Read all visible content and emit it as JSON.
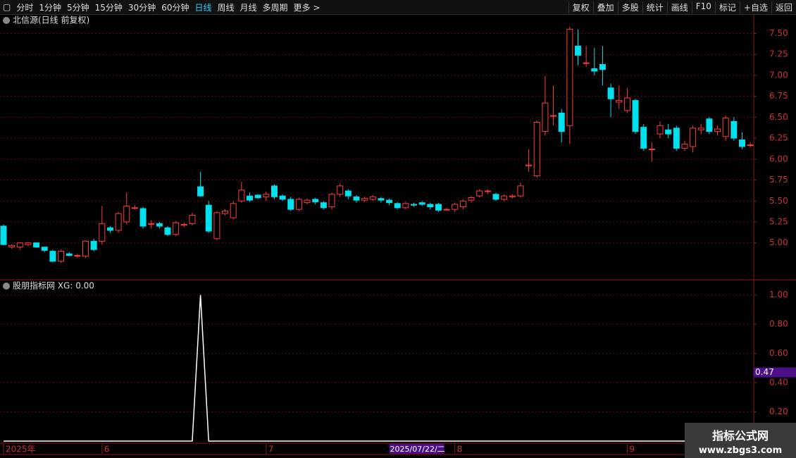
{
  "toolbar": {
    "periods": [
      "分时",
      "1分钟",
      "5分钟",
      "15分钟",
      "30分钟",
      "60分钟",
      "日线",
      "周线",
      "月线",
      "多周期",
      "更多 >"
    ],
    "selected": 6,
    "tools": [
      "复权",
      "叠加",
      "多股",
      "统计",
      "画线",
      "F10",
      "标记",
      "+自选",
      "返回"
    ]
  },
  "chart_data": [
    {
      "type": "candlestick",
      "title": "北信源(日线 前复权)",
      "up_color": "#ff3c3c",
      "down_color": "#00e0ee",
      "categories": [
        "2025年",
        null,
        null,
        null,
        null,
        null,
        null,
        null,
        null,
        null,
        null,
        null,
        "6",
        null,
        null,
        null,
        null,
        null,
        null,
        null,
        null,
        null,
        null,
        null,
        null,
        null,
        null,
        null,
        null,
        null,
        null,
        null,
        "7",
        null,
        null,
        null,
        null,
        null,
        null,
        null,
        null,
        null,
        null,
        null,
        null,
        null,
        null,
        null,
        null,
        null,
        null,
        null,
        null,
        null,
        null,
        "8",
        null,
        null,
        null,
        null,
        null,
        null,
        null,
        null,
        null,
        null,
        null,
        null,
        null,
        null,
        null,
        null,
        null,
        null,
        null,
        null,
        "9",
        null,
        null,
        null,
        null,
        null,
        null,
        null,
        null,
        null,
        null,
        null,
        null,
        null,
        null,
        null
      ],
      "open": [
        5.2,
        4.95,
        4.95,
        4.98,
        5.0,
        4.95,
        4.9,
        4.78,
        4.87,
        4.85,
        4.84,
        5.02,
        5.02,
        5.18,
        5.15,
        5.25,
        5.42,
        5.41,
        5.23,
        5.23,
        5.18,
        5.1,
        5.21,
        5.23,
        5.67,
        5.45,
        5.05,
        5.35,
        5.3,
        5.5,
        5.56,
        5.57,
        5.55,
        5.68,
        5.56,
        5.52,
        5.4,
        5.48,
        5.52,
        5.48,
        5.43,
        5.58,
        5.62,
        5.55,
        5.51,
        5.52,
        5.53,
        5.51,
        5.47,
        5.42,
        5.46,
        5.48,
        5.46,
        5.46,
        5.4,
        5.4,
        5.43,
        5.51,
        5.56,
        5.62,
        5.58,
        5.52,
        5.55,
        5.56,
        5.92,
        5.8,
        6.33,
        6.52,
        6.55,
        6.4,
        7.35,
        7.15,
        7.08,
        7.13,
        6.85,
        6.68,
        6.58,
        6.7,
        6.38,
        6.12,
        6.3,
        6.35,
        6.37,
        6.13,
        6.15,
        6.35,
        6.48,
        6.33,
        6.27,
        6.45,
        6.23,
        6.17
      ],
      "close": [
        4.98,
        4.97,
        5.0,
        5.0,
        4.95,
        4.91,
        4.78,
        4.9,
        4.85,
        4.85,
        5.02,
        4.92,
        5.23,
        5.15,
        5.35,
        5.44,
        5.42,
        5.2,
        5.23,
        5.2,
        5.1,
        5.24,
        5.22,
        5.33,
        5.56,
        5.14,
        5.36,
        5.38,
        5.47,
        5.63,
        5.51,
        5.54,
        5.58,
        5.55,
        5.52,
        5.4,
        5.52,
        5.51,
        5.49,
        5.42,
        5.58,
        5.68,
        5.56,
        5.51,
        5.53,
        5.55,
        5.51,
        5.48,
        5.42,
        5.47,
        5.45,
        5.46,
        5.43,
        5.39,
        5.4,
        5.46,
        5.5,
        5.54,
        5.62,
        5.62,
        5.52,
        5.56,
        5.56,
        5.68,
        5.93,
        6.44,
        6.67,
        6.52,
        6.33,
        7.55,
        7.24,
        7.15,
        7.05,
        7.07,
        6.72,
        6.7,
        6.73,
        6.33,
        6.13,
        6.12,
        6.4,
        6.3,
        6.13,
        6.18,
        6.37,
        6.37,
        6.33,
        6.36,
        6.49,
        6.25,
        6.15,
        6.17
      ],
      "high": [
        5.22,
        4.98,
        5.01,
        5.01,
        5.01,
        4.95,
        4.92,
        4.92,
        4.89,
        4.87,
        5.03,
        5.05,
        5.44,
        5.2,
        5.37,
        5.6,
        5.45,
        5.43,
        5.27,
        5.25,
        5.2,
        5.26,
        5.24,
        5.36,
        5.85,
        5.5,
        5.38,
        5.4,
        5.5,
        5.73,
        5.6,
        5.58,
        5.61,
        5.7,
        5.58,
        5.55,
        5.54,
        5.53,
        5.54,
        5.5,
        5.6,
        5.71,
        5.64,
        5.57,
        5.55,
        5.57,
        5.55,
        5.53,
        5.49,
        5.49,
        5.48,
        5.5,
        5.48,
        5.48,
        5.42,
        5.48,
        5.52,
        5.56,
        5.64,
        5.64,
        5.6,
        5.58,
        5.58,
        5.72,
        6.12,
        6.46,
        6.99,
        6.88,
        6.6,
        7.58,
        7.55,
        7.35,
        7.33,
        7.35,
        6.9,
        6.88,
        6.85,
        6.72,
        6.42,
        6.2,
        6.45,
        6.42,
        6.4,
        6.22,
        6.4,
        6.42,
        6.5,
        6.4,
        6.52,
        6.5,
        6.32,
        6.2
      ],
      "low": [
        4.97,
        4.93,
        4.92,
        4.96,
        4.94,
        4.89,
        4.77,
        4.76,
        4.84,
        4.82,
        4.82,
        4.9,
        4.98,
        5.12,
        5.12,
        5.22,
        5.4,
        5.17,
        5.17,
        5.17,
        5.08,
        5.08,
        5.19,
        5.21,
        5.55,
        5.12,
        5.03,
        5.33,
        5.28,
        5.48,
        5.49,
        5.52,
        5.5,
        5.52,
        5.5,
        5.38,
        5.38,
        5.46,
        5.46,
        5.4,
        5.4,
        5.55,
        5.52,
        5.48,
        5.49,
        5.5,
        5.48,
        5.45,
        5.4,
        5.4,
        5.43,
        5.44,
        5.4,
        5.37,
        5.38,
        5.37,
        5.4,
        5.48,
        5.54,
        5.58,
        5.5,
        5.5,
        5.53,
        5.54,
        5.85,
        5.78,
        6.28,
        6.4,
        6.2,
        6.18,
        7.12,
        7.1,
        7.0,
        6.88,
        6.5,
        6.6,
        6.55,
        6.3,
        6.1,
        5.97,
        6.25,
        6.25,
        6.1,
        6.1,
        6.08,
        6.3,
        6.3,
        6.28,
        6.22,
        6.22,
        6.12,
        6.14
      ],
      "ylim": [
        4.56,
        7.58
      ],
      "yticks": [
        {
          "value": 5,
          "label": "5.00"
        },
        {
          "value": 5.25,
          "label": "5.25"
        },
        {
          "value": 5.5,
          "label": "5.50"
        },
        {
          "value": 5.75,
          "label": "5.75"
        },
        {
          "value": 6,
          "label": "6.00"
        },
        {
          "value": 6.25,
          "label": "6.25"
        },
        {
          "value": 6.5,
          "label": "6.50"
        },
        {
          "value": 6.75,
          "label": "6.75"
        },
        {
          "value": 7,
          "label": "7.00"
        },
        {
          "value": 7.25,
          "label": "7.25"
        },
        {
          "value": 7.5,
          "label": "7.50"
        }
      ],
      "grid": true
    },
    {
      "type": "line",
      "title": "股朋指标网 XG: 0.00",
      "color": "#ffffff",
      "values": [
        0,
        0,
        0,
        0,
        0,
        0,
        0,
        0,
        0,
        0,
        0,
        0,
        0,
        0,
        0,
        0,
        0,
        0,
        0,
        0,
        0,
        0,
        0,
        0,
        1,
        0,
        0,
        0,
        0,
        0,
        0,
        0,
        0,
        0,
        0,
        0,
        0,
        0,
        0,
        0,
        0,
        0,
        0,
        0,
        0,
        0,
        0,
        0,
        0,
        0,
        0,
        0,
        0,
        0,
        0,
        0,
        0,
        0,
        0,
        0,
        0,
        0,
        0,
        0,
        0,
        0,
        0,
        0,
        0,
        0,
        0,
        0,
        0,
        0,
        0,
        0,
        0,
        0,
        0,
        0,
        0,
        0,
        0,
        0,
        0,
        0,
        0,
        0,
        0,
        0,
        0,
        0
      ],
      "ylim": [
        0,
        1.09
      ],
      "yticks": [
        {
          "value": 0.2,
          "label": "0.20"
        },
        {
          "value": 0.4,
          "label": "0.40"
        },
        {
          "value": 0.6,
          "label": "0.60"
        },
        {
          "value": 0.8,
          "label": "0.80"
        },
        {
          "value": 1,
          "label": "1.00"
        }
      ],
      "y_cursor": {
        "value": 0.47,
        "label": "0.47"
      },
      "x_cursor": {
        "index": 47,
        "label": "2025/07/22/二"
      },
      "grid": true
    }
  ],
  "watermark": {
    "title": "指标公式网",
    "url": "www.zbgs3.com"
  }
}
